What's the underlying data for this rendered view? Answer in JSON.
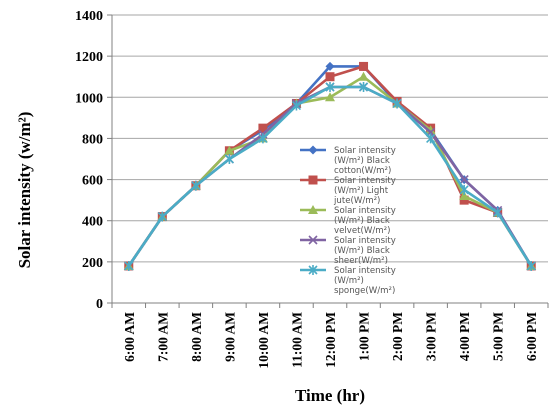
{
  "chart_data": {
    "type": "line",
    "ylabel": "Solar intensity (w/m²)",
    "xlabel": "Time (hr)",
    "ylim": [
      0,
      1400
    ],
    "yticks": [
      0,
      200,
      400,
      600,
      800,
      1000,
      1200,
      1400
    ],
    "grid": "horizontal",
    "legend_position": "center-right",
    "categories": [
      "6:00 AM",
      "7:00 AM",
      "8:00 AM",
      "9:00 AM",
      "10:00 AM",
      "11:00 AM",
      "12:00 PM",
      "1:00 PM",
      "2:00 PM",
      "3:00 PM",
      "4:00 PM",
      "5:00 PM",
      "6:00 PM"
    ],
    "series": [
      {
        "name": "Solar intensity (W/m²) Black cotton(W/m²)",
        "legend_lines": [
          "Solar intensity",
          "(W/m²) Black",
          "cotton(W/m²)"
        ],
        "color": "#4472C4",
        "marker": "diamond",
        "values": [
          180,
          420,
          570,
          740,
          840,
          970,
          1150,
          1150,
          970,
          840,
          600,
          450,
          180
        ]
      },
      {
        "name": "Solar intensity (W/m²) Light jute(W/m²)",
        "legend_lines": [
          "Solar intensity",
          "(W/m²) Light",
          "jute(W/m²)"
        ],
        "color": "#C0504D",
        "marker": "square",
        "values": [
          180,
          420,
          570,
          740,
          850,
          970,
          1100,
          1150,
          980,
          850,
          500,
          440,
          180
        ]
      },
      {
        "name": "Solar intensity (W/m²) Black velvet(W/m²)",
        "legend_lines": [
          "Solar intensity",
          "(W/m²) Black",
          "velvet(W/m²)"
        ],
        "color": "#9BBB59",
        "marker": "triangle",
        "values": [
          180,
          420,
          570,
          740,
          800,
          970,
          1000,
          1100,
          970,
          840,
          520,
          440,
          180
        ]
      },
      {
        "name": "Solar intensity (W/m²) Black sheer(W/m²)",
        "legend_lines": [
          "Solar intensity",
          "(W/m²) Black",
          "sheer(W/m²)"
        ],
        "color": "#8064A2",
        "marker": "x",
        "values": [
          180,
          420,
          570,
          700,
          820,
          970,
          1050,
          1050,
          970,
          830,
          600,
          450,
          180
        ]
      },
      {
        "name": "Solar intensity (W/m²) sponge(W/m²)",
        "legend_lines": [
          "Solar intensity",
          "(W/m²)",
          "sponge(W/m²)"
        ],
        "color": "#4BACC6",
        "marker": "star",
        "values": [
          180,
          420,
          570,
          700,
          800,
          960,
          1050,
          1050,
          970,
          800,
          550,
          440,
          180
        ]
      }
    ]
  }
}
